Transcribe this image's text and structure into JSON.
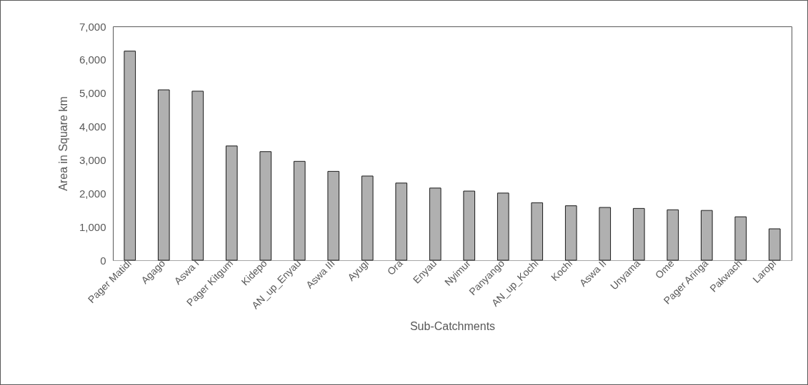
{
  "chart_data": {
    "type": "bar",
    "xlabel": "Sub-Catchments",
    "ylabel": "Area in Square km",
    "categories": [
      "Pager Matidi",
      "Agago",
      "Aswa I",
      "Pager Kitgum",
      "Kidepo",
      "AN_up_Enyau",
      "Aswa III",
      "Ayugi",
      "Ora",
      "Enyau",
      "Nyimur",
      "Panyango",
      "AN_up_Kochi",
      "Kochi",
      "Aswa II",
      "Unyama",
      "Ome",
      "Pager Aringa",
      "Pakwach",
      "Laropi"
    ],
    "values": [
      6260,
      5100,
      5060,
      3420,
      3250,
      2960,
      2660,
      2520,
      2310,
      2160,
      2070,
      2010,
      1720,
      1630,
      1580,
      1550,
      1510,
      1490,
      1300,
      940
    ],
    "color": "#b0b0b0",
    "ylim": [
      0,
      7000
    ],
    "yticks": [
      {
        "value": 0,
        "label": "0"
      },
      {
        "value": 1000,
        "label": "1,000"
      },
      {
        "value": 2000,
        "label": "2,000"
      },
      {
        "value": 3000,
        "label": "3,000"
      },
      {
        "value": 4000,
        "label": "4,000"
      },
      {
        "value": 5000,
        "label": "5,000"
      },
      {
        "value": 6000,
        "label": "6,000"
      },
      {
        "value": 7000,
        "label": "7,000"
      }
    ],
    "grid": false
  }
}
